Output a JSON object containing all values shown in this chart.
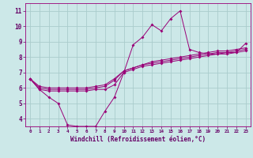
{
  "bg_color": "#cce8e8",
  "line_color": "#990077",
  "grid_color": "#aacccc",
  "xlabel": "Windchill (Refroidissement éolien,°C)",
  "xlabel_color": "#660066",
  "tick_color": "#660066",
  "xlim": [
    -0.5,
    23.5
  ],
  "ylim": [
    3.5,
    11.5
  ],
  "yticks": [
    4,
    5,
    6,
    7,
    8,
    9,
    10,
    11
  ],
  "xticks": [
    0,
    1,
    2,
    3,
    4,
    5,
    6,
    7,
    8,
    9,
    10,
    11,
    12,
    13,
    14,
    15,
    16,
    17,
    18,
    19,
    20,
    21,
    22,
    23
  ],
  "series": [
    [
      6.6,
      5.9,
      5.4,
      5.0,
      3.6,
      3.5,
      3.5,
      3.5,
      4.5,
      5.4,
      7.0,
      8.8,
      9.3,
      10.1,
      9.7,
      10.5,
      11.0,
      8.5,
      8.3,
      8.2,
      8.2,
      8.3,
      8.3,
      8.9
    ],
    [
      6.6,
      5.9,
      5.8,
      5.8,
      5.8,
      5.8,
      5.8,
      5.9,
      5.9,
      6.2,
      7.0,
      7.2,
      7.4,
      7.5,
      7.6,
      7.7,
      7.8,
      7.9,
      8.0,
      8.1,
      8.2,
      8.2,
      8.3,
      8.4
    ],
    [
      6.6,
      6.0,
      5.9,
      5.9,
      5.9,
      5.9,
      5.9,
      6.0,
      6.1,
      6.5,
      7.1,
      7.3,
      7.5,
      7.6,
      7.7,
      7.8,
      7.9,
      8.0,
      8.1,
      8.2,
      8.3,
      8.3,
      8.4,
      8.5
    ],
    [
      6.6,
      6.1,
      6.0,
      6.0,
      6.0,
      6.0,
      6.0,
      6.1,
      6.2,
      6.6,
      7.1,
      7.3,
      7.5,
      7.7,
      7.8,
      7.9,
      8.0,
      8.1,
      8.2,
      8.3,
      8.4,
      8.4,
      8.5,
      8.6
    ]
  ],
  "figsize": [
    3.2,
    2.0
  ],
  "dpi": 100
}
